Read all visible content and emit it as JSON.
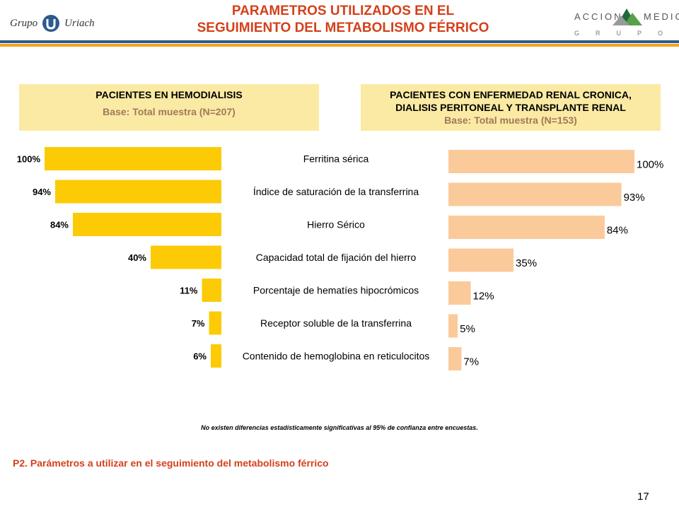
{
  "header": {
    "title_line1": "PARAMETROS UTILIZADOS EN EL",
    "title_line2": "SEGUIMIENTO DEL METABOLISMO FÉRRICO",
    "logo_left_word1": "Grupo",
    "logo_left_word2": "Uriach",
    "logo_right_word1": "ACCION",
    "logo_right_word2": "MEDICA",
    "logo_right_word3": "GRUPO",
    "accent_color": "#d4401a",
    "rule_colors": [
      "#2e5a8c",
      "#f2a31b"
    ]
  },
  "panels": {
    "left": {
      "title": "PACIENTES EN HEMODIALISIS",
      "base": "Base: Total muestra (N=207)"
    },
    "right": {
      "title_line1": "PACIENTES CON ENFERMEDAD RENAL CRONICA,",
      "title_line2": "DIALISIS PERITONEAL Y TRANSPLANTE RENAL",
      "base": "Base: Total muestra (N=153)"
    },
    "fill_color": "#fbeaa3"
  },
  "chart_data": {
    "type": "bar",
    "orientation": "horizontal",
    "categories": [
      "Ferritina sérica",
      "Índice de saturación de la transferrina",
      "Hierro Sérico",
      "Capacidad total de fijación del hierro",
      "Porcentaje de hematíes hipocrómicos",
      "Receptor soluble de la transferrina",
      "Contenido de hemoglobina en reticulocitos"
    ],
    "series": [
      {
        "name": "PACIENTES EN HEMODIALISIS",
        "values": [
          100,
          94,
          84,
          40,
          11,
          7,
          6
        ],
        "labels": [
          "100%",
          "94%",
          "84%",
          "40%",
          "11%",
          "7%",
          "6%"
        ],
        "color": "#fccb06"
      },
      {
        "name": "PACIENTES CON ENFERMEDAD RENAL CRONICA, DIALISIS PERITONEAL Y TRANSPLANTE RENAL",
        "values": [
          100,
          93,
          84,
          35,
          12,
          5,
          7
        ],
        "labels": [
          "100%",
          "93%",
          "84%",
          "35%",
          "12%",
          "5%",
          "7%"
        ],
        "color": "#fbca9a"
      }
    ],
    "xlim": [
      0,
      100
    ],
    "unit": "%",
    "grid": false
  },
  "footnote": "No existen diferencias estadísticamente significativas al 95% de confianza entre encuestas.",
  "question": "P2. Parámetros a utilizar en el seguimiento del metabolismo férrico",
  "page_number": "17"
}
